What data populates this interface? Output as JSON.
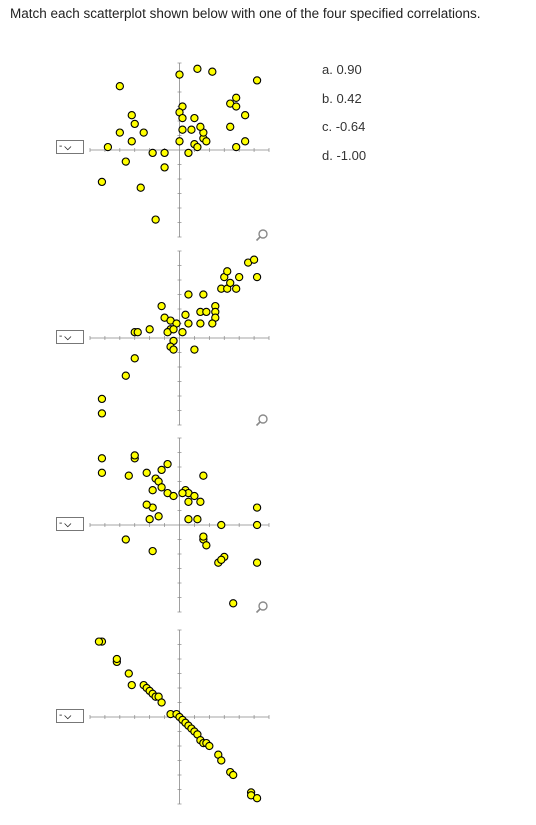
{
  "instruction": "Match each scatterplot shown below with one of the four specified correlations.",
  "options": [
    "a. 0.90",
    "b. 0.42",
    "c. -0.64",
    "d. -1.00"
  ],
  "selects": [
    {
      "value": "-",
      "icon": "chevron-down-icon"
    },
    {
      "value": "-",
      "icon": "chevron-down-icon"
    },
    {
      "value": "-",
      "icon": "chevron-down-icon"
    },
    {
      "value": "-",
      "icon": "chevron-down-icon"
    }
  ],
  "colors": {
    "point_fill": "#ffff00",
    "point_stroke": "#000000",
    "axis": "#888888",
    "zoom": "#8a8a8a"
  },
  "chart_data": [
    {
      "type": "scatter",
      "xlim": [
        -3,
        3
      ],
      "ylim": [
        -3,
        3
      ],
      "grid": false,
      "points": [
        [
          -2,
          2.2
        ],
        [
          -1.6,
          1.2
        ],
        [
          -1.5,
          0.9
        ],
        [
          -2,
          0.6
        ],
        [
          -1.2,
          0.6
        ],
        [
          -2.4,
          0.1
        ],
        [
          -1.8,
          -0.4
        ],
        [
          -1.6,
          0.3
        ],
        [
          -0.9,
          -0.1
        ],
        [
          -0.5,
          -0.1
        ],
        [
          -0.5,
          -0.6
        ],
        [
          -2.6,
          -1.1
        ],
        [
          -1.3,
          -1.3
        ],
        [
          -0.8,
          -2.4
        ],
        [
          0,
          2.6
        ],
        [
          0.1,
          1.5
        ],
        [
          0,
          1.3
        ],
        [
          0.1,
          1.1
        ],
        [
          0,
          0.3
        ],
        [
          0.3,
          -0.1
        ],
        [
          0.1,
          0.7
        ],
        [
          0.5,
          0.2
        ],
        [
          0.6,
          0.1
        ],
        [
          0.8,
          0.4
        ],
        [
          0.9,
          0.3
        ],
        [
          0.8,
          0.6
        ],
        [
          0.7,
          0.8
        ],
        [
          0.4,
          0.7
        ],
        [
          0.5,
          1.1
        ],
        [
          0.6,
          2.8
        ],
        [
          1.1,
          2.7
        ],
        [
          1.7,
          1.6
        ],
        [
          1.9,
          1.5
        ],
        [
          1.9,
          1.8
        ],
        [
          2.2,
          1.2
        ],
        [
          1.7,
          0.8
        ],
        [
          2.6,
          2.4
        ],
        [
          2.2,
          0.3
        ],
        [
          1.9,
          0.1
        ]
      ]
    },
    {
      "type": "scatter",
      "xlim": [
        -3,
        3
      ],
      "ylim": [
        -3,
        3
      ],
      "grid": false,
      "points": [
        [
          -2.6,
          -2.1
        ],
        [
          -2.6,
          -2.6
        ],
        [
          -1.8,
          -1.3
        ],
        [
          -1.5,
          -0.7
        ],
        [
          -1.5,
          0.2
        ],
        [
          -1.4,
          0.2
        ],
        [
          -1,
          0.3
        ],
        [
          -0.6,
          1.1
        ],
        [
          -0.5,
          0.7
        ],
        [
          -0.3,
          0.3
        ],
        [
          -0.4,
          0.2
        ],
        [
          -0.3,
          0.6
        ],
        [
          -0.1,
          0.5
        ],
        [
          -0.2,
          0.3
        ],
        [
          -0.2,
          -0.1
        ],
        [
          -0.3,
          -0.3
        ],
        [
          -0.2,
          -0.4
        ],
        [
          0.5,
          -0.4
        ],
        [
          0.1,
          0.2
        ],
        [
          0.3,
          0.5
        ],
        [
          0.2,
          0.8
        ],
        [
          0.3,
          1.5
        ],
        [
          0.8,
          1.5
        ],
        [
          0.7,
          0.9
        ],
        [
          0.9,
          0.9
        ],
        [
          1.2,
          1.1
        ],
        [
          1.2,
          0.9
        ],
        [
          1.2,
          0.7
        ],
        [
          0.7,
          0.5
        ],
        [
          1.1,
          0.5
        ],
        [
          1.4,
          1.7
        ],
        [
          1.6,
          1.7
        ],
        [
          1.7,
          1.9
        ],
        [
          1.9,
          1.7
        ],
        [
          2,
          2.1
        ],
        [
          1.5,
          2.1
        ],
        [
          1.6,
          2.3
        ],
        [
          2.3,
          2.6
        ],
        [
          2.5,
          2.7
        ],
        [
          2.6,
          2.1
        ]
      ]
    },
    {
      "type": "scatter",
      "xlim": [
        -3,
        3
      ],
      "ylim": [
        -3,
        3
      ],
      "grid": false,
      "points": [
        [
          -2.6,
          2.3
        ],
        [
          -2.6,
          1.8
        ],
        [
          -1.5,
          2.3
        ],
        [
          -1.5,
          2.4
        ],
        [
          -1.7,
          1.7
        ],
        [
          -1.1,
          1.8
        ],
        [
          -0.8,
          1.6
        ],
        [
          -0.7,
          1.5
        ],
        [
          -0.9,
          1.2
        ],
        [
          -0.6,
          1.3
        ],
        [
          -0.6,
          1.9
        ],
        [
          -0.4,
          2.1
        ],
        [
          -0.4,
          1.1
        ],
        [
          -0.2,
          1
        ],
        [
          -0.9,
          0.6
        ],
        [
          -1.1,
          0.7
        ],
        [
          -1,
          0.2
        ],
        [
          -0.7,
          0.3
        ],
        [
          -1.8,
          -0.5
        ],
        [
          -0.9,
          -0.9
        ],
        [
          0.2,
          1.2
        ],
        [
          0.3,
          1.1
        ],
        [
          0.5,
          1
        ],
        [
          0.3,
          0.8
        ],
        [
          0.7,
          0.8
        ],
        [
          0.8,
          1.7
        ],
        [
          0.1,
          1.1
        ],
        [
          0.3,
          0.2
        ],
        [
          0.6,
          0.2
        ],
        [
          0.8,
          -0.5
        ],
        [
          0.9,
          -0.7
        ],
        [
          0.8,
          -0.4
        ],
        [
          1.3,
          -1.3
        ],
        [
          1.5,
          -1.1
        ],
        [
          1.4,
          -1.2
        ],
        [
          1.4,
          0
        ],
        [
          2.6,
          -1.3
        ],
        [
          2.6,
          0.6
        ],
        [
          2.6,
          0
        ],
        [
          1.8,
          -2.7
        ]
      ]
    },
    {
      "type": "scatter",
      "xlim": [
        -3,
        3
      ],
      "ylim": [
        -3,
        3
      ],
      "grid": false,
      "points": [
        [
          -2.6,
          2.6
        ],
        [
          -2.7,
          2.6
        ],
        [
          -2.1,
          1.9
        ],
        [
          -2.1,
          2
        ],
        [
          -1.7,
          1.5
        ],
        [
          -1.6,
          1.1
        ],
        [
          -1.2,
          1.1
        ],
        [
          -1.1,
          1
        ],
        [
          -1,
          0.9
        ],
        [
          -0.9,
          0.8
        ],
        [
          -0.8,
          0.7
        ],
        [
          -0.7,
          0.7
        ],
        [
          -0.6,
          0.5
        ],
        [
          -0.3,
          0.1
        ],
        [
          -0.1,
          0.1
        ],
        [
          0,
          0
        ],
        [
          0.1,
          -0.1
        ],
        [
          0.2,
          -0.2
        ],
        [
          0.3,
          -0.3
        ],
        [
          0.4,
          -0.4
        ],
        [
          0.5,
          -0.5
        ],
        [
          0.6,
          -0.6
        ],
        [
          0.7,
          -0.8
        ],
        [
          0.8,
          -0.9
        ],
        [
          0.9,
          -0.9
        ],
        [
          1,
          -1
        ],
        [
          1.3,
          -1.3
        ],
        [
          1.4,
          -1.5
        ],
        [
          1.7,
          -1.9
        ],
        [
          1.8,
          -2
        ],
        [
          2.4,
          -2.6
        ],
        [
          2.4,
          -2.7
        ],
        [
          2.6,
          -2.8
        ]
      ]
    }
  ]
}
